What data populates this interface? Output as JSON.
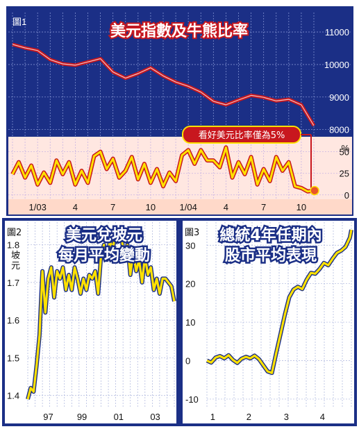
{
  "chart_data": [
    {
      "type": "line",
      "figure_label": "圖1",
      "title": "美元指數及牛熊比率",
      "annotation": "看好美元比率僅為5%",
      "x_tick_labels": [
        "1/03",
        "4",
        "7",
        "10",
        "1/04",
        "4",
        "7",
        "10"
      ],
      "y_left_ticks": [
        "11000",
        "10000",
        "9000",
        "8000"
      ],
      "y_right_ticks": [
        "%",
        "50",
        "25",
        "0"
      ],
      "ylim_index": [
        7800,
        11300
      ],
      "ylim_ratio": [
        -5,
        65
      ],
      "colors": {
        "panel_top": "#1b2f86",
        "panel_bottom": "#ffe7e1",
        "index_line": "#c8171e",
        "ratio_line": "#ffe100",
        "ratio_outline": "#c8171e",
        "tick_band": "#ffd9c9"
      },
      "series": [
        {
          "role": "index",
          "x": [
            0,
            1,
            2,
            3,
            4,
            5,
            6,
            7,
            8,
            9,
            10,
            11,
            12,
            13,
            14,
            15,
            16,
            17,
            18,
            19,
            20,
            21,
            22,
            23,
            24
          ],
          "values": [
            10620,
            10510,
            10430,
            10150,
            10020,
            9980,
            10080,
            10180,
            9770,
            9580,
            9720,
            9900,
            9650,
            9460,
            9330,
            9150,
            8870,
            8760,
            8910,
            9050,
            8990,
            8880,
            8930,
            8760,
            8120
          ]
        },
        {
          "role": "ratio",
          "x": [
            0,
            0.5,
            1,
            1.5,
            2,
            2.5,
            3,
            3.5,
            4,
            4.5,
            5,
            5.5,
            6,
            6.5,
            7,
            7.5,
            8,
            8.5,
            9,
            9.5,
            10,
            10.5,
            11,
            11.5,
            12,
            12.5,
            13,
            13.5,
            14,
            14.5,
            15,
            15.5,
            16,
            16.5,
            17,
            17.5,
            18,
            18.5,
            19,
            19.5,
            20,
            20.5,
            21,
            21.5,
            22,
            22.5,
            23,
            23.5,
            24
          ],
          "values": [
            24,
            38,
            20,
            34,
            12,
            26,
            14,
            40,
            24,
            38,
            12,
            28,
            14,
            45,
            50,
            30,
            42,
            20,
            28,
            44,
            18,
            36,
            14,
            30,
            10,
            26,
            16,
            46,
            52,
            36,
            52,
            40,
            40,
            32,
            55,
            20,
            38,
            24,
            44,
            12,
            30,
            16,
            44,
            28,
            38,
            10,
            8,
            4,
            5
          ]
        }
      ]
    },
    {
      "type": "line",
      "figure_label": "圖2",
      "title_lines": [
        "美元兌坡元",
        "每月平均變動"
      ],
      "ylabel_lines": [
        "坡",
        "元"
      ],
      "y_ticks": [
        "1.8",
        "1.7",
        "1.6",
        "1.5",
        "1.4"
      ],
      "x_tick_labels": [
        "97",
        "99",
        "01",
        "03"
      ],
      "ylim": [
        1.37,
        1.86
      ],
      "xlim": [
        0,
        100
      ],
      "colors": {
        "background": "#1b2f86",
        "line": "#ffe100"
      },
      "series": [
        {
          "x": [
            0,
            2,
            4,
            6,
            8,
            10,
            12,
            14,
            16,
            18,
            20,
            22,
            24,
            26,
            28,
            30,
            32,
            34,
            36,
            38,
            40,
            42,
            44,
            46,
            48,
            50,
            52,
            54,
            56,
            58,
            60,
            62,
            64,
            66,
            68,
            70,
            72,
            74,
            76,
            78,
            80,
            82,
            84,
            86,
            88,
            90,
            92,
            94,
            96,
            98,
            100
          ],
          "values": [
            1.39,
            1.42,
            1.41,
            1.48,
            1.56,
            1.73,
            1.62,
            1.71,
            1.74,
            1.66,
            1.73,
            1.71,
            1.74,
            1.68,
            1.72,
            1.68,
            1.74,
            1.71,
            1.67,
            1.71,
            1.68,
            1.72,
            1.71,
            1.73,
            1.67,
            1.77,
            1.8,
            1.76,
            1.81,
            1.79,
            1.83,
            1.83,
            1.82,
            1.76,
            1.8,
            1.72,
            1.78,
            1.73,
            1.76,
            1.7,
            1.77,
            1.72,
            1.74,
            1.68,
            1.71,
            1.67,
            1.71,
            1.71,
            1.7,
            1.69,
            1.65
          ]
        }
      ]
    },
    {
      "type": "line",
      "figure_label": "圖3",
      "title_lines": [
        "總統4年任期內",
        "股市平均表現"
      ],
      "y_ticks": [
        "30",
        "20",
        "10",
        "0",
        "-10"
      ],
      "x_tick_labels": [
        "1",
        "2",
        "3",
        "4"
      ],
      "ylim": [
        -12,
        36
      ],
      "xlim": [
        0,
        100
      ],
      "colors": {
        "background": "#1b2f86",
        "line": "#ffe100"
      },
      "series": [
        {
          "x": [
            0,
            3,
            6,
            9,
            12,
            15,
            18,
            21,
            24,
            27,
            30,
            33,
            36,
            39,
            42,
            45,
            48,
            51,
            54,
            57,
            60,
            63,
            66,
            69,
            72,
            75,
            78,
            81,
            84,
            87,
            90,
            93,
            96,
            99,
            100
          ],
          "values": [
            0,
            -0.5,
            0.8,
            1.2,
            0.6,
            1.4,
            0.2,
            -0.6,
            0.5,
            1.0,
            0.6,
            1.3,
            0.4,
            -1.2,
            -2.8,
            -3.2,
            2.0,
            7.0,
            12.0,
            16.5,
            18.5,
            19.2,
            18.6,
            21.0,
            22.8,
            22.6,
            23.8,
            25.4,
            24.8,
            26.5,
            28.0,
            28.6,
            29.6,
            32.0,
            34.0
          ]
        }
      ]
    }
  ]
}
